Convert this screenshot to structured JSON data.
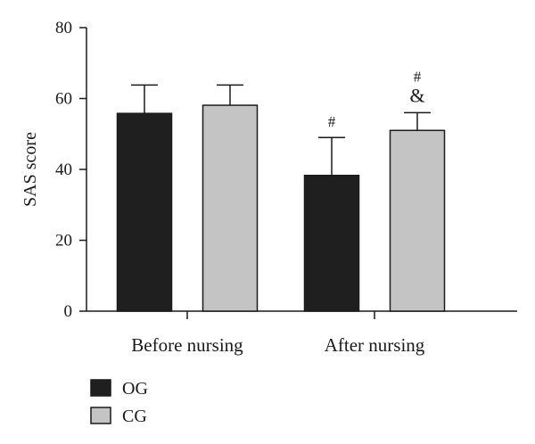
{
  "chart_data": {
    "type": "bar",
    "title": "",
    "xlabel": "",
    "ylabel": "SAS score",
    "ylim": [
      0,
      80
    ],
    "yticks": [
      0,
      20,
      40,
      60,
      80
    ],
    "categories": [
      "Before nursing",
      "After nursing"
    ],
    "series": [
      {
        "name": "OG",
        "color": "#1f1f1f",
        "values": [
          55.8,
          38.3
        ],
        "errors": [
          8.0,
          10.7
        ],
        "annotations": [
          "",
          "#"
        ]
      },
      {
        "name": "CG",
        "color": "#c4c4c4",
        "values": [
          58.1,
          51.0
        ],
        "errors": [
          5.7,
          5.0
        ],
        "annotations": [
          "",
          "#\n&"
        ]
      }
    ],
    "legend": "bottom-left",
    "grid": false
  }
}
